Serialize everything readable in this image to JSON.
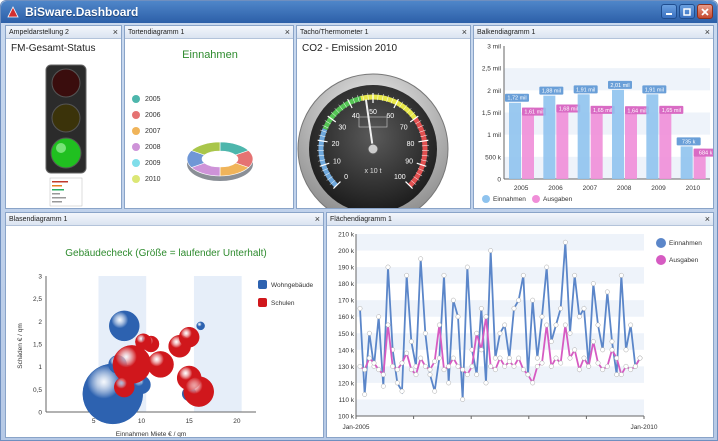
{
  "window": {
    "title": "BiSware.Dashboard"
  },
  "panels": {
    "ampel": {
      "header": "Ampeldarstellung 2",
      "title": "FM-Gesamt-Status"
    },
    "torte": {
      "header": "Tortendiagramm 1",
      "title": "Einnahmen",
      "legend": [
        "2005",
        "2006",
        "2007",
        "2008",
        "2009",
        "2010"
      ],
      "colors": [
        "#4db6ac",
        "#e57373",
        "#f0b45a",
        "#ce93d8",
        "#80deea",
        "#dce775"
      ]
    },
    "tacho": {
      "header": "Tacho/Thermometer 1",
      "title": "CO2 - Emission 2010",
      "unit": "x 10 t",
      "ticks": [
        "0",
        "10",
        "20",
        "30",
        "40",
        "50",
        "60",
        "70",
        "80",
        "90",
        "100"
      ],
      "value": 47
    },
    "balken": {
      "header": "Balkendiagramm 1"
    },
    "blasen": {
      "header": "Blasendiagramm 1"
    },
    "flaechen": {
      "header": "Flächendiagramm 1"
    }
  },
  "charts": [
    {
      "type": "bar",
      "categories": [
        "2005",
        "2006",
        "2007",
        "2008",
        "2009",
        "2010"
      ],
      "series": [
        {
          "name": "Einnahmen",
          "values": [
            1.72,
            1.88,
            1.91,
            2.01,
            1.91,
            0.735
          ],
          "labels": [
            "1,72 mil",
            "1,88 mil",
            "1,91 mil",
            "2,01 mil",
            "1,91 mil",
            "735 k"
          ],
          "color": "#8fc3ee"
        },
        {
          "name": "Ausgaben",
          "values": [
            1.61,
            1.68,
            1.65,
            1.64,
            1.65,
            0.684
          ],
          "labels": [
            "1,61 mil",
            "1,68 mil",
            "1,65 mil",
            "1,64 mil",
            "1,65 mil",
            "684 k"
          ],
          "color": "#f08ed8"
        }
      ],
      "yticks": [
        "0",
        "500 k",
        "1 mil",
        "1,5 mil",
        "2 mil",
        "2,5 mil",
        "3 mil"
      ],
      "ylim": [
        0,
        3
      ]
    },
    {
      "type": "scatter",
      "title": "Gebäudecheck (Größe = laufender Unterhalt)",
      "xlabel": "Einnahmen Miete € / qm",
      "ylabel": "Schäden € / qm",
      "xlim": [
        0,
        22
      ],
      "ylim": [
        0,
        3
      ],
      "xticks": [
        "5",
        "10",
        "15",
        "20"
      ],
      "yticks": [
        "0",
        "0,5",
        "1",
        "1,5",
        "2",
        "2,5",
        "3"
      ],
      "series": [
        {
          "name": "Wohngebäude",
          "color": "#2d62b0",
          "points": [
            [
              7,
              0.4,
              30
            ],
            [
              8.2,
              1.9,
              15
            ],
            [
              7.5,
              1.05,
              9
            ],
            [
              10,
              0.6,
              9
            ],
            [
              10.5,
              1.6,
              4
            ],
            [
              16.2,
              1.9,
              4
            ],
            [
              15,
              0.4,
              7
            ],
            [
              8.6,
              0.9,
              6
            ]
          ]
        },
        {
          "name": "Schulen",
          "color": "#d0171c",
          "points": [
            [
              9,
              1.05,
              19
            ],
            [
              12,
              1.05,
              13
            ],
            [
              14,
              1.45,
              11
            ],
            [
              15,
              0.75,
              12
            ],
            [
              16,
              0.45,
              15
            ],
            [
              15,
              1.65,
              10
            ],
            [
              11,
              1.5,
              8
            ],
            [
              10.2,
              1.55,
              8
            ],
            [
              8.2,
              0.55,
              10
            ]
          ]
        }
      ]
    },
    {
      "type": "line",
      "x_start": "Jan-2005",
      "x_end": "Jan-2010",
      "yticks": [
        "100 k",
        "110 k",
        "120 k",
        "130 k",
        "140 k",
        "150 k",
        "160 k",
        "170 k",
        "180 k",
        "190 k",
        "200 k",
        "210 k"
      ],
      "ylim": [
        100,
        210
      ],
      "series": [
        {
          "name": "Einnahmen",
          "color": "#5b86c9",
          "values": [
            165,
            113,
            150,
            130,
            160,
            118,
            190,
            140,
            120,
            115,
            185,
            145,
            130,
            195,
            150,
            125,
            115,
            135,
            185,
            120,
            170,
            160,
            110,
            190,
            140,
            125,
            165,
            120,
            200,
            135,
            150,
            155,
            135,
            165,
            170,
            185,
            125,
            170,
            135,
            160,
            190,
            145,
            155,
            165,
            205,
            150,
            185,
            160,
            165,
            130,
            180,
            155,
            140,
            175,
            145,
            125,
            185,
            140,
            155,
            130,
            135
          ]
        },
        {
          "name": "Ausgaben",
          "color": "#d65bc2",
          "values": [
            130,
            128,
            135,
            132,
            128,
            125,
            155,
            130,
            128,
            132,
            138,
            128,
            125,
            135,
            130,
            128,
            133,
            155,
            128,
            130,
            135,
            130,
            128,
            125,
            130,
            150,
            140,
            160,
            130,
            128,
            135,
            130,
            133,
            130,
            135,
            128,
            125,
            120,
            130,
            132,
            155,
            130,
            135,
            132,
            155,
            135,
            140,
            128,
            135,
            130,
            145,
            132,
            128,
            130,
            140,
            135,
            125,
            130,
            128,
            130,
            135
          ]
        }
      ]
    }
  ]
}
